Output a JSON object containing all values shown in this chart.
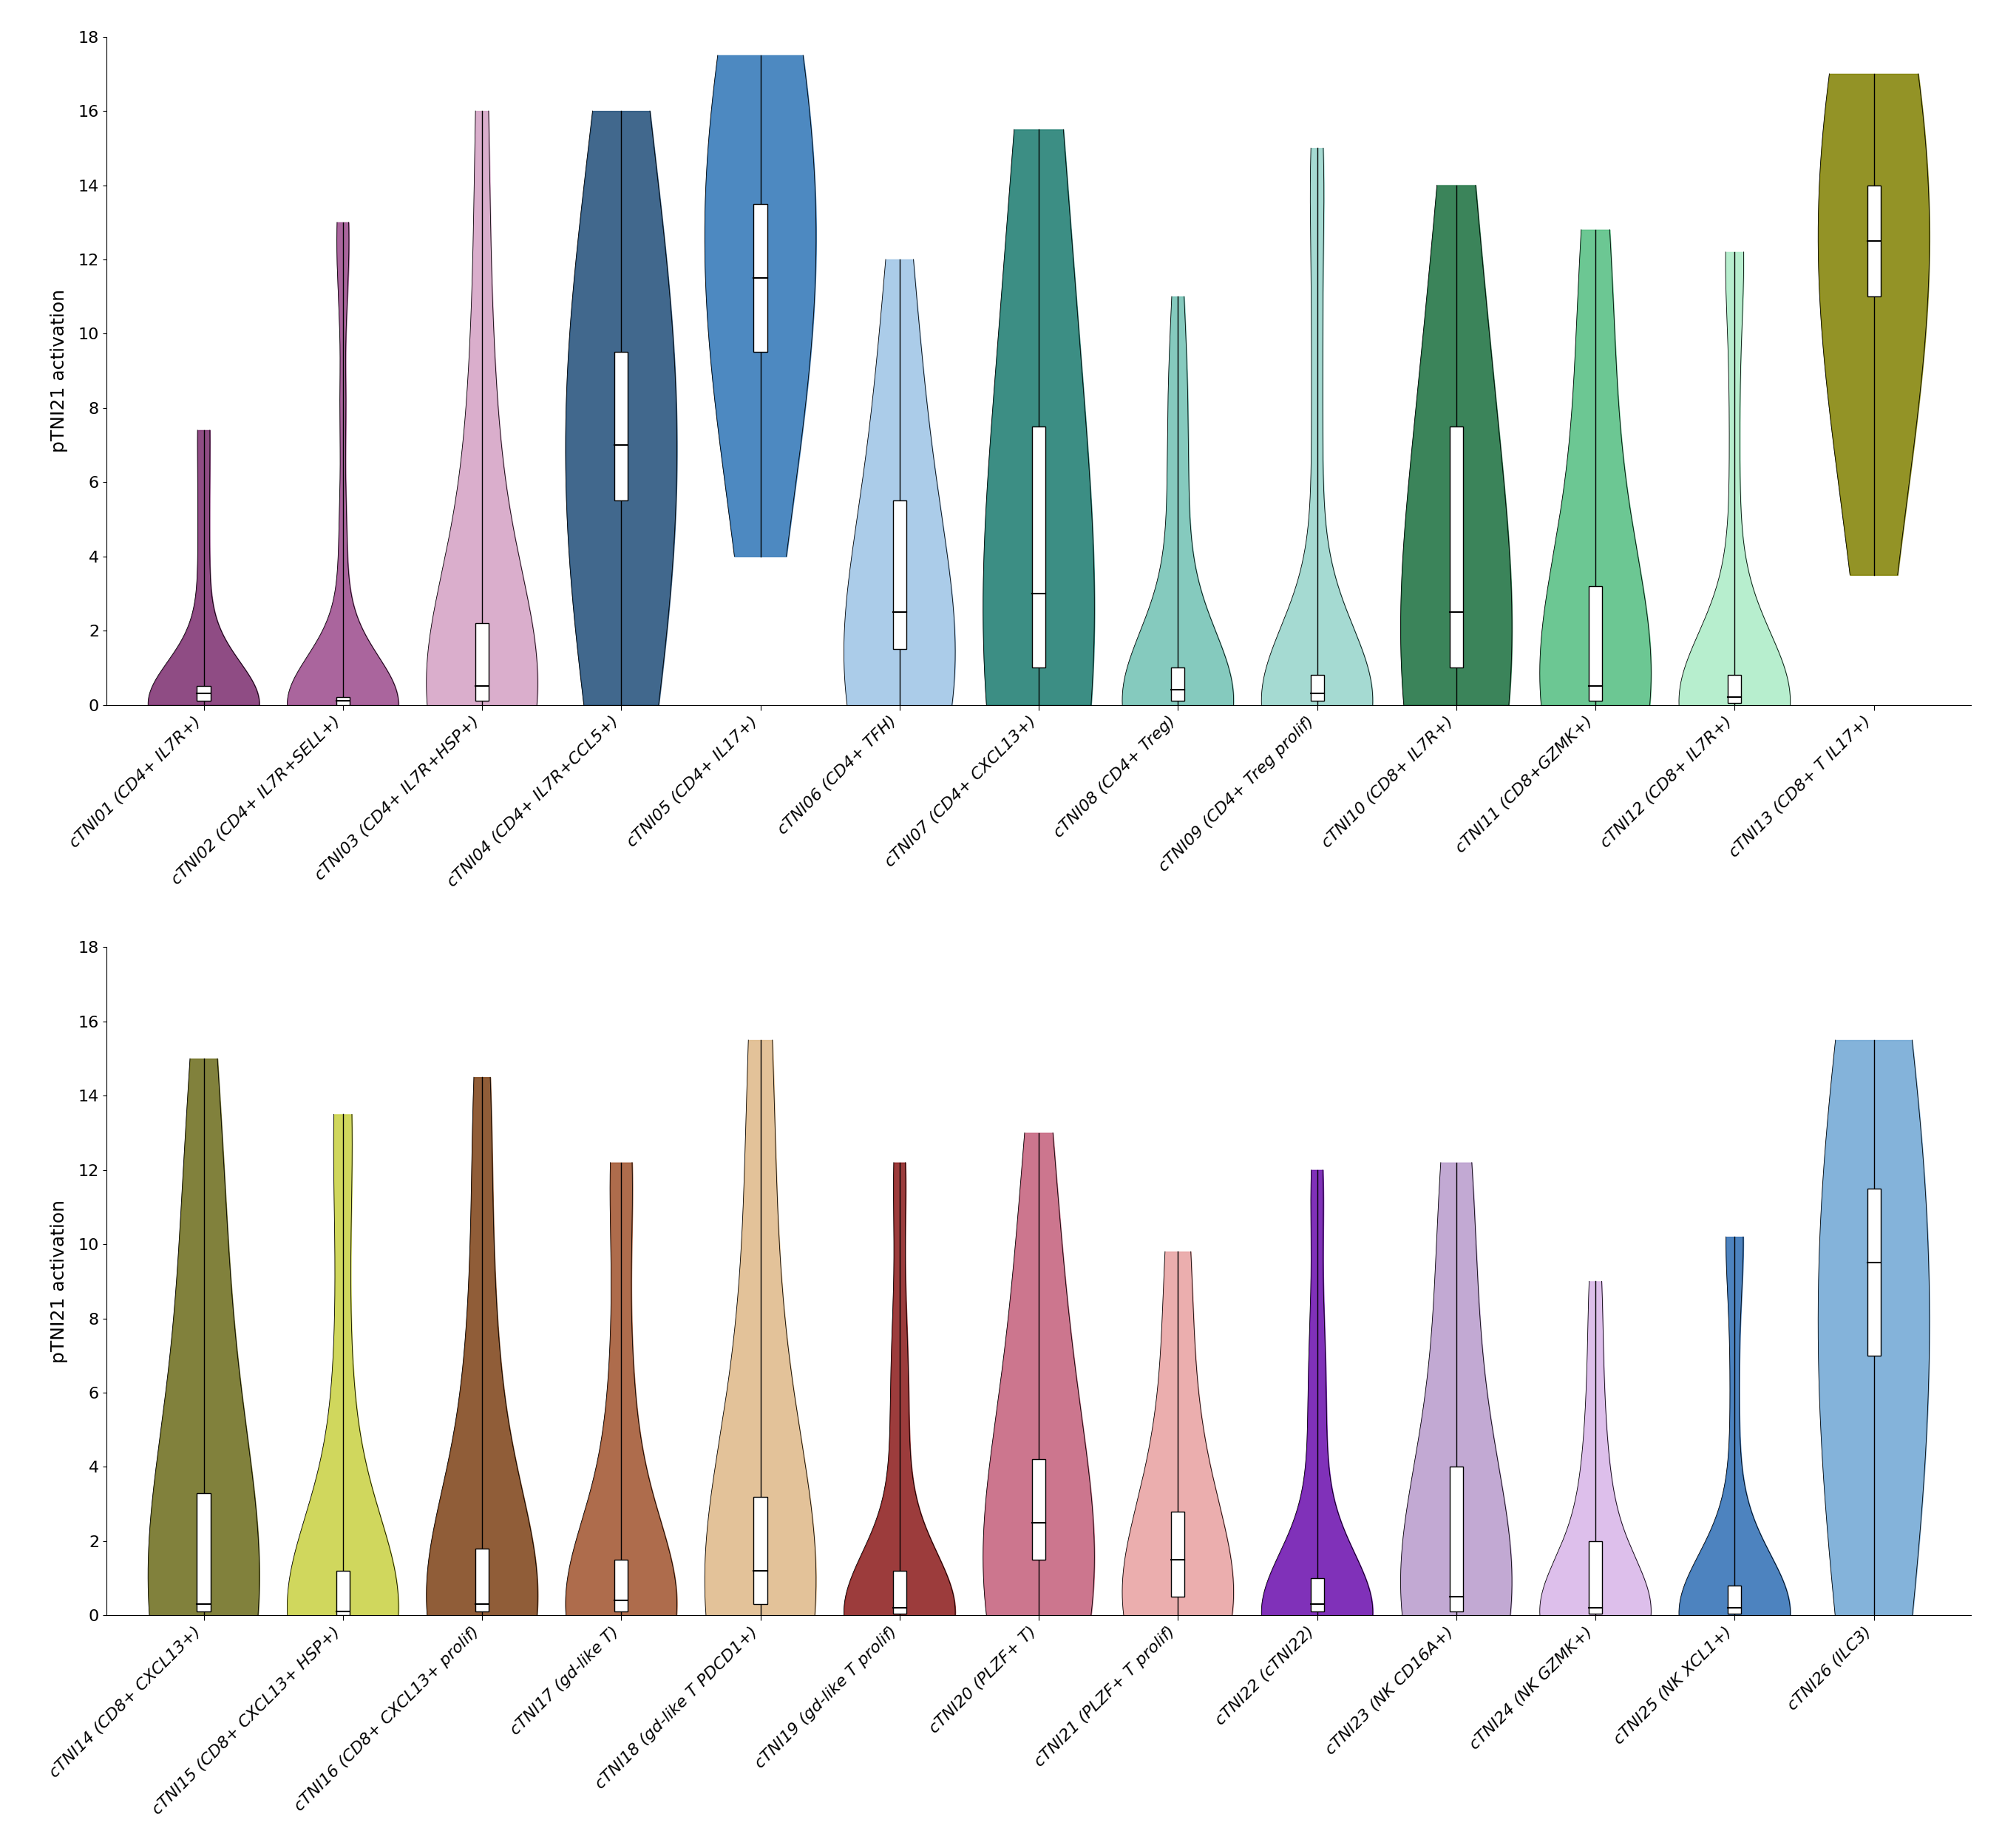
{
  "panel1": {
    "violins": [
      {
        "name": "cTNI01 (CD4+ IL7R+)",
        "color": "#7B2D6E",
        "median": 0.3,
        "q1": 0.1,
        "q3": 0.5,
        "whisker_low": 0.0,
        "whisker_high": 7.4,
        "bw": 0.4,
        "samples": [
          0.0,
          0.05,
          0.1,
          0.15,
          0.2,
          0.25,
          0.3,
          0.35,
          0.4,
          0.5,
          0.6,
          0.8,
          1.0,
          1.5,
          2.0,
          3.0,
          4.0,
          5.0,
          6.0,
          7.0
        ]
      },
      {
        "name": "cTNI02 (CD4+ IL7R+SELL+)",
        "color": "#9B4A8C",
        "median": 0.1,
        "q1": 0.0,
        "q3": 0.2,
        "whisker_low": 0.0,
        "whisker_high": 13.0,
        "bw": 0.3,
        "samples": [
          0.0,
          0.0,
          0.05,
          0.1,
          0.1,
          0.15,
          0.2,
          0.3,
          0.5,
          0.8,
          1.5,
          3.0,
          5.0,
          8.0,
          11.0,
          12.5
        ]
      },
      {
        "name": "cTNI03 (CD4+ IL7R+HSP+)",
        "color": "#D4A0C4",
        "median": 0.5,
        "q1": 0.1,
        "q3": 2.2,
        "whisker_low": 0.0,
        "whisker_high": 16.0,
        "bw": 0.6,
        "samples": [
          0.0,
          0.05,
          0.1,
          0.2,
          0.3,
          0.5,
          0.7,
          1.0,
          1.5,
          2.0,
          2.5,
          3.0,
          4.0,
          5.0,
          6.0,
          7.0,
          8.0,
          10.0,
          12.0,
          15.0
        ]
      },
      {
        "name": "cTNI04 (CD4+ IL7R+CCL5+)",
        "color": "#1F4E79",
        "median": 7.0,
        "q1": 5.5,
        "q3": 9.5,
        "whisker_low": 0.0,
        "whisker_high": 16.0,
        "bw": 1.2,
        "samples": [
          0.5,
          1.0,
          2.0,
          3.0,
          4.0,
          4.5,
          5.0,
          5.5,
          6.0,
          6.5,
          7.0,
          7.5,
          8.0,
          8.5,
          9.0,
          9.5,
          10.0,
          11.0,
          12.0,
          13.0,
          14.0,
          15.0
        ]
      },
      {
        "name": "cTNI05 (CD4+ IL17+)",
        "color": "#2E75B6",
        "median": 11.5,
        "q1": 9.5,
        "q3": 13.5,
        "whisker_low": 4.0,
        "whisker_high": 17.5,
        "bw": 1.2,
        "samples": [
          4.5,
          5.0,
          6.0,
          7.0,
          8.0,
          9.0,
          9.5,
          10.0,
          10.5,
          11.0,
          11.5,
          12.0,
          12.5,
          13.0,
          13.5,
          14.0,
          14.5,
          15.0,
          15.5,
          16.0,
          16.5,
          17.0
        ]
      },
      {
        "name": "cTNI06 (CD4+ TFH)",
        "color": "#9DC3E6",
        "median": 2.5,
        "q1": 1.5,
        "q3": 5.5,
        "whisker_low": 0.0,
        "whisker_high": 12.0,
        "bw": 0.8,
        "samples": [
          0.0,
          0.1,
          0.3,
          0.5,
          0.8,
          1.0,
          1.5,
          2.0,
          2.5,
          3.0,
          3.5,
          4.0,
          4.5,
          5.0,
          5.5,
          6.0,
          7.0,
          8.0,
          9.0,
          10.0,
          11.5
        ]
      },
      {
        "name": "cTNI07 (CD4+ CXCL13+)",
        "color": "#1A7A6E",
        "median": 3.0,
        "q1": 1.0,
        "q3": 7.5,
        "whisker_low": 0.0,
        "whisker_high": 15.5,
        "bw": 1.0,
        "samples": [
          0.0,
          0.1,
          0.3,
          0.5,
          0.8,
          1.0,
          1.5,
          2.0,
          2.5,
          3.0,
          4.0,
          5.0,
          6.0,
          7.0,
          8.0,
          9.0,
          10.0,
          11.0,
          12.0,
          13.0,
          14.0,
          15.0
        ]
      },
      {
        "name": "cTNI08 (CD4+ Treg)",
        "color": "#70C1B3",
        "median": 0.4,
        "q1": 0.1,
        "q3": 1.0,
        "whisker_low": 0.0,
        "whisker_high": 11.0,
        "bw": 0.5,
        "samples": [
          0.0,
          0.05,
          0.1,
          0.2,
          0.3,
          0.4,
          0.5,
          0.6,
          0.8,
          1.0,
          1.2,
          1.5,
          2.0,
          3.0,
          4.0,
          5.0,
          6.0,
          7.0,
          8.0,
          9.0,
          10.0
        ]
      },
      {
        "name": "cTNI09 (CD4+ Treg prolif)",
        "color": "#96D4CA",
        "median": 0.3,
        "q1": 0.1,
        "q3": 0.8,
        "whisker_low": 0.0,
        "whisker_high": 15.0,
        "bw": 0.4,
        "samples": [
          0.0,
          0.05,
          0.1,
          0.15,
          0.2,
          0.3,
          0.4,
          0.5,
          0.6,
          0.8,
          1.0,
          1.5,
          2.0,
          3.0,
          5.0,
          7.0,
          9.0,
          11.0,
          13.0,
          14.5
        ]
      },
      {
        "name": "cTNI10 (CD8+ IL7R+)",
        "color": "#196F3D",
        "median": 2.5,
        "q1": 1.0,
        "q3": 7.5,
        "whisker_low": 0.0,
        "whisker_high": 14.0,
        "bw": 1.0,
        "samples": [
          0.0,
          0.1,
          0.3,
          0.5,
          0.8,
          1.0,
          1.5,
          2.0,
          2.5,
          3.0,
          4.0,
          5.0,
          6.0,
          7.0,
          7.5,
          8.0,
          9.0,
          10.0,
          11.0,
          12.0,
          13.0
        ]
      },
      {
        "name": "cTNI11 (CD8+GZMK+)",
        "color": "#52BE80",
        "median": 0.5,
        "q1": 0.1,
        "q3": 3.2,
        "whisker_low": 0.0,
        "whisker_high": 12.8,
        "bw": 0.7,
        "samples": [
          0.0,
          0.05,
          0.1,
          0.2,
          0.3,
          0.5,
          0.8,
          1.0,
          1.5,
          2.0,
          2.5,
          3.0,
          3.5,
          4.0,
          5.0,
          6.0,
          7.0,
          8.0,
          9.0,
          10.0,
          11.0,
          12.0
        ]
      },
      {
        "name": "cTNI12 (CD8+ IL7R+)",
        "color": "#ABEBC6",
        "median": 0.2,
        "q1": 0.05,
        "q3": 0.8,
        "whisker_low": 0.0,
        "whisker_high": 12.2,
        "bw": 0.4,
        "samples": [
          0.0,
          0.02,
          0.05,
          0.1,
          0.15,
          0.2,
          0.3,
          0.5,
          0.7,
          0.8,
          1.0,
          1.5,
          2.0,
          3.0,
          5.0,
          7.0,
          9.0,
          11.0,
          12.0
        ]
      },
      {
        "name": "cTNI13 (CD8+ T IL17+)",
        "color": "#808000",
        "median": 12.5,
        "q1": 11.0,
        "q3": 14.0,
        "whisker_low": 3.5,
        "whisker_high": 17.0,
        "bw": 1.2,
        "samples": [
          4.0,
          5.0,
          6.0,
          7.0,
          8.0,
          9.0,
          10.0,
          10.5,
          11.0,
          11.5,
          12.0,
          12.5,
          13.0,
          13.5,
          14.0,
          14.5,
          15.0,
          15.5,
          16.0,
          16.5
        ]
      }
    ],
    "ylabel": "pTNI21 activation",
    "ylim": [
      0,
      18
    ]
  },
  "panel2": {
    "violins": [
      {
        "name": "cTNI14 (CD8+ CXCL13+)",
        "color": "#6B6B1A",
        "median": 0.3,
        "q1": 0.1,
        "q3": 3.3,
        "whisker_low": 0.0,
        "whisker_high": 15.0,
        "bw": 0.8,
        "samples": [
          0.0,
          0.05,
          0.1,
          0.2,
          0.3,
          0.5,
          0.8,
          1.0,
          1.5,
          2.0,
          2.5,
          3.0,
          4.0,
          5.0,
          6.0,
          7.0,
          8.0,
          9.0,
          10.0,
          11.0,
          12.0,
          13.0,
          14.0
        ]
      },
      {
        "name": "cTNI15 (CD8+ CXCL13+ HSP+)",
        "color": "#C8D040",
        "median": 0.1,
        "q1": 0.0,
        "q3": 1.2,
        "whisker_low": 0.0,
        "whisker_high": 13.5,
        "bw": 0.5,
        "samples": [
          0.0,
          0.0,
          0.05,
          0.1,
          0.15,
          0.2,
          0.3,
          0.5,
          0.8,
          1.0,
          1.2,
          1.5,
          2.0,
          3.0,
          4.0,
          5.0,
          6.0,
          8.0,
          10.0,
          12.0,
          13.0
        ]
      },
      {
        "name": "cTNI16 (CD8+ CXCL13+ prolif)",
        "color": "#7D4015",
        "median": 0.3,
        "q1": 0.1,
        "q3": 1.8,
        "whisker_low": 0.0,
        "whisker_high": 14.5,
        "bw": 0.6,
        "samples": [
          0.0,
          0.05,
          0.1,
          0.2,
          0.3,
          0.5,
          0.8,
          1.0,
          1.5,
          2.0,
          2.5,
          3.0,
          4.0,
          5.0,
          6.0,
          7.0,
          8.0,
          10.0,
          12.0,
          14.0
        ]
      },
      {
        "name": "cTNI17 (gd-like T)",
        "color": "#A0522D",
        "median": 0.4,
        "q1": 0.1,
        "q3": 1.5,
        "whisker_low": 0.0,
        "whisker_high": 12.2,
        "bw": 0.5,
        "samples": [
          0.0,
          0.05,
          0.1,
          0.2,
          0.3,
          0.4,
          0.5,
          0.8,
          1.0,
          1.5,
          2.0,
          2.5,
          3.0,
          4.0,
          5.0,
          6.0,
          7.0,
          9.0,
          11.0,
          12.0
        ]
      },
      {
        "name": "cTNI18 (gd-like T PDCD1+)",
        "color": "#DEB887",
        "median": 1.2,
        "q1": 0.3,
        "q3": 3.2,
        "whisker_low": 0.0,
        "whisker_high": 15.5,
        "bw": 0.7,
        "samples": [
          0.0,
          0.05,
          0.1,
          0.2,
          0.3,
          0.5,
          0.8,
          1.0,
          1.2,
          1.5,
          2.0,
          2.5,
          3.0,
          3.5,
          4.0,
          5.0,
          6.0,
          7.0,
          8.0,
          9.0,
          10.0,
          12.0,
          14.0,
          15.0
        ]
      },
      {
        "name": "cTNI19 (gd-like T prolif)",
        "color": "#8B1A1A",
        "median": 0.2,
        "q1": 0.05,
        "q3": 1.2,
        "whisker_low": 0.0,
        "whisker_high": 12.2,
        "bw": 0.4,
        "samples": [
          0.0,
          0.02,
          0.05,
          0.1,
          0.15,
          0.2,
          0.3,
          0.5,
          0.8,
          1.0,
          1.2,
          1.5,
          2.0,
          3.0,
          4.0,
          5.0,
          6.0,
          7.0,
          8.0,
          10.0,
          12.0
        ]
      },
      {
        "name": "cTNI20 (PLZF+ T)",
        "color": "#C45E7A",
        "median": 2.5,
        "q1": 1.5,
        "q3": 4.2,
        "whisker_low": 0.0,
        "whisker_high": 13.0,
        "bw": 0.8,
        "samples": [
          0.0,
          0.1,
          0.3,
          0.5,
          0.8,
          1.0,
          1.5,
          2.0,
          2.5,
          3.0,
          3.5,
          4.0,
          4.5,
          5.0,
          5.5,
          6.0,
          7.0,
          8.0,
          9.0,
          10.0,
          11.0,
          12.5
        ]
      },
      {
        "name": "cTNI21 (PLZF+ T prolif)",
        "color": "#E8A0A0",
        "median": 1.5,
        "q1": 0.5,
        "q3": 2.8,
        "whisker_low": 0.0,
        "whisker_high": 9.8,
        "bw": 0.6,
        "samples": [
          0.0,
          0.05,
          0.1,
          0.3,
          0.5,
          0.8,
          1.0,
          1.5,
          2.0,
          2.5,
          2.8,
          3.0,
          3.5,
          4.0,
          5.0,
          6.0,
          7.0,
          8.0,
          9.5
        ]
      },
      {
        "name": "cTNI22 (cTNI22)",
        "color": "#6A0DAD",
        "median": 0.3,
        "q1": 0.1,
        "q3": 1.0,
        "whisker_low": 0.0,
        "whisker_high": 12.0,
        "bw": 0.4,
        "samples": [
          0.0,
          0.05,
          0.1,
          0.15,
          0.2,
          0.3,
          0.4,
          0.5,
          0.8,
          1.0,
          1.2,
          1.5,
          2.0,
          3.0,
          4.0,
          5.0,
          6.0,
          7.0,
          8.0,
          10.0,
          11.5
        ]
      },
      {
        "name": "cTNI23 (NK CD16A+)",
        "color": "#B89ACC",
        "median": 0.5,
        "q1": 0.1,
        "q3": 4.0,
        "whisker_low": 0.0,
        "whisker_high": 12.2,
        "bw": 0.7,
        "samples": [
          0.0,
          0.05,
          0.1,
          0.2,
          0.3,
          0.5,
          0.8,
          1.0,
          1.5,
          2.0,
          2.5,
          3.0,
          3.5,
          4.0,
          4.5,
          5.0,
          6.0,
          7.0,
          8.0,
          9.0,
          10.0,
          11.0,
          12.0
        ]
      },
      {
        "name": "cTNI24 (NK GZMK+)",
        "color": "#D8B4E8",
        "median": 0.2,
        "q1": 0.05,
        "q3": 2.0,
        "whisker_low": 0.0,
        "whisker_high": 9.0,
        "bw": 0.5,
        "samples": [
          0.0,
          0.02,
          0.05,
          0.1,
          0.15,
          0.2,
          0.3,
          0.5,
          0.8,
          1.0,
          1.5,
          2.0,
          2.5,
          3.0,
          3.5,
          4.0,
          5.0,
          6.0,
          7.0,
          8.5
        ]
      },
      {
        "name": "cTNI25 (NK XCL1+)",
        "color": "#2E6DB4",
        "median": 0.2,
        "q1": 0.05,
        "q3": 0.8,
        "whisker_low": 0.0,
        "whisker_high": 10.2,
        "bw": 0.4,
        "samples": [
          0.0,
          0.02,
          0.05,
          0.1,
          0.15,
          0.2,
          0.3,
          0.5,
          0.7,
          0.8,
          1.0,
          1.5,
          2.0,
          3.0,
          5.0,
          7.0,
          9.0,
          10.0
        ]
      },
      {
        "name": "cTNI26 (ILC3)",
        "color": "#6EA6D4",
        "median": 9.5,
        "q1": 7.0,
        "q3": 11.5,
        "whisker_low": 0.0,
        "whisker_high": 15.5,
        "bw": 1.2,
        "samples": [
          0.0,
          0.5,
          1.0,
          2.0,
          3.0,
          4.0,
          5.0,
          6.0,
          7.0,
          7.5,
          8.0,
          8.5,
          9.0,
          9.5,
          10.0,
          10.5,
          11.0,
          11.5,
          12.0,
          12.5,
          13.0,
          14.0,
          15.0
        ]
      }
    ],
    "ylabel": "pTNI21 activation",
    "ylim": [
      0,
      18
    ]
  }
}
